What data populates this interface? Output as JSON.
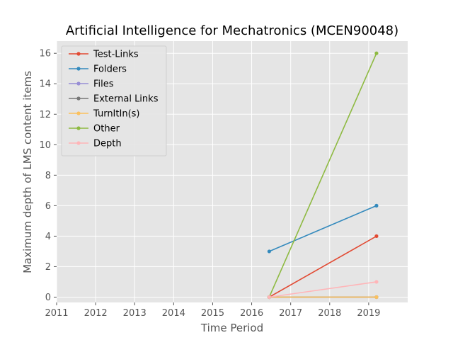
{
  "chart_data": {
    "type": "line",
    "title": "Artificial Intelligence for Mechatronics (MCEN90048)",
    "xlabel": "Time Period",
    "ylabel": "Maximum depth of LMS content items",
    "xlim": [
      2011,
      2020
    ],
    "ylim": [
      -0.35,
      16.8
    ],
    "xticks": [
      "2011",
      "2012",
      "2013",
      "2014",
      "2015",
      "2016",
      "2017",
      "2018",
      "2019"
    ],
    "yticks": [
      "0",
      "2",
      "4",
      "6",
      "8",
      "10",
      "12",
      "14",
      "16"
    ],
    "grid": true,
    "legend_position": "top-left",
    "x": [
      2016.45,
      2019.2
    ],
    "series": [
      {
        "name": "Test-Links",
        "color": "#e24a33",
        "values": [
          0,
          4
        ]
      },
      {
        "name": "Folders",
        "color": "#348abd",
        "values": [
          3,
          6
        ]
      },
      {
        "name": "Files",
        "color": "#988ed5",
        "values": [
          0,
          0
        ]
      },
      {
        "name": "External Links",
        "color": "#777777",
        "values": [
          0,
          0
        ]
      },
      {
        "name": "TurnItIn(s)",
        "color": "#fbc15e",
        "values": [
          0,
          0
        ]
      },
      {
        "name": "Other",
        "color": "#8eba42",
        "values": [
          0,
          16
        ]
      },
      {
        "name": "Depth",
        "color": "#ffb5b8",
        "values": [
          0,
          1
        ]
      }
    ]
  }
}
